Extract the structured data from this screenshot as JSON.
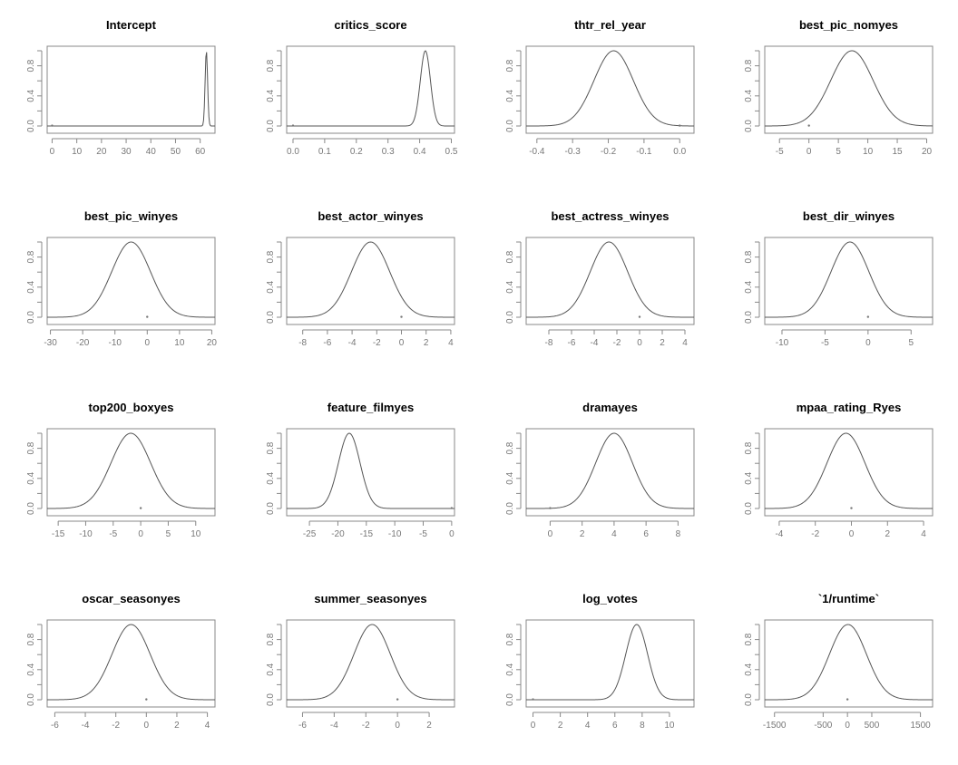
{
  "chart_data": [
    {
      "type": "line",
      "title": "Intercept",
      "xlim": [
        -2,
        66
      ],
      "ylim": [
        0,
        1
      ],
      "xticks": [
        0,
        10,
        20,
        30,
        40,
        50,
        60
      ],
      "yticks": [
        "0.0",
        "0.4",
        "0.8"
      ],
      "peak_x": 62.5,
      "sd": 0.5,
      "point0": {
        "x": 0,
        "y": 0.005
      }
    },
    {
      "type": "line",
      "title": "critics_score",
      "xlim": [
        -0.02,
        0.51
      ],
      "ylim": [
        0,
        1
      ],
      "xticks": [
        "0.0",
        "0.1",
        "0.2",
        "0.3",
        "0.4",
        "0.5"
      ],
      "yticks": [
        "0.0",
        "0.4",
        "0.8"
      ],
      "peak_x": 0.418,
      "sd": 0.016,
      "point0": {
        "x": 0,
        "y": 0.005
      }
    },
    {
      "type": "line",
      "title": "thtr_rel_year",
      "xlim": [
        -0.43,
        0.04
      ],
      "ylim": [
        0,
        1
      ],
      "xticks": [
        "-0.4",
        "-0.3",
        "-0.2",
        "-0.1",
        "0.0"
      ],
      "yticks": [
        "0.0",
        "0.4",
        "0.8"
      ],
      "peak_x": -0.185,
      "sd": 0.055,
      "point0": {
        "x": 0,
        "y": 0.005
      }
    },
    {
      "type": "line",
      "title": "best_pic_nomyes",
      "xlim": [
        -7.5,
        21
      ],
      "ylim": [
        0,
        1
      ],
      "xticks": [
        -5,
        0,
        5,
        10,
        15,
        20
      ],
      "yticks": [
        "0.0",
        "0.4",
        "0.8"
      ],
      "peak_x": 7.3,
      "sd": 3.6,
      "point0": {
        "x": 0,
        "y": 0.005
      }
    },
    {
      "type": "line",
      "title": "best_pic_winyes",
      "xlim": [
        -31,
        21
      ],
      "ylim": [
        0,
        1
      ],
      "xticks": [
        -30,
        -20,
        -10,
        0,
        10,
        20
      ],
      "yticks": [
        "0.0",
        "0.4",
        "0.8"
      ],
      "peak_x": -5,
      "sd": 6,
      "point0": {
        "x": 0,
        "y": 0.005
      }
    },
    {
      "type": "line",
      "title": "best_actor_winyes",
      "xlim": [
        -9.3,
        4.3
      ],
      "ylim": [
        0,
        1
      ],
      "xticks": [
        -8,
        -6,
        -4,
        -2,
        0,
        2,
        4
      ],
      "yticks": [
        "0.0",
        "0.4",
        "0.8"
      ],
      "peak_x": -2.5,
      "sd": 1.55,
      "point0": {
        "x": 0,
        "y": 0.005
      }
    },
    {
      "type": "line",
      "title": "best_actress_winyes",
      "xlim": [
        -10,
        4.8
      ],
      "ylim": [
        0,
        1
      ],
      "xticks": [
        -8,
        -6,
        -4,
        -2,
        0,
        2,
        4
      ],
      "yticks": [
        "0.0",
        "0.4",
        "0.8"
      ],
      "peak_x": -2.7,
      "sd": 1.65,
      "point0": {
        "x": 0,
        "y": 0.005
      }
    },
    {
      "type": "line",
      "title": "best_dir_winyes",
      "xlim": [
        -12,
        7.5
      ],
      "ylim": [
        0,
        1
      ],
      "xticks": [
        -10,
        -5,
        0,
        5
      ],
      "yticks": [
        "0.0",
        "0.4",
        "0.8"
      ],
      "peak_x": -2.1,
      "sd": 2.2,
      "point0": {
        "x": 0,
        "y": 0.005
      }
    },
    {
      "type": "line",
      "title": "top200_boxyes",
      "xlim": [
        -17,
        13.5
      ],
      "ylim": [
        0,
        1
      ],
      "xticks": [
        -15,
        -10,
        -5,
        0,
        5,
        10
      ],
      "yticks": [
        "0.0",
        "0.4",
        "0.8"
      ],
      "peak_x": -1.8,
      "sd": 3.6,
      "point0": {
        "x": 0,
        "y": 0.005
      }
    },
    {
      "type": "line",
      "title": "feature_filmyes",
      "xlim": [
        -29,
        0.5
      ],
      "ylim": [
        0,
        1
      ],
      "xticks": [
        -25,
        -20,
        -15,
        -10,
        -5,
        0
      ],
      "yticks": [
        "0.0",
        "0.4",
        "0.8"
      ],
      "peak_x": -18,
      "sd": 1.9,
      "point0": {
        "x": 0,
        "y": 0.005
      }
    },
    {
      "type": "line",
      "title": "dramayes",
      "xlim": [
        -1.5,
        9
      ],
      "ylim": [
        0,
        1
      ],
      "xticks": [
        0,
        2,
        4,
        6,
        8
      ],
      "yticks": [
        "0.0",
        "0.4",
        "0.8"
      ],
      "peak_x": 4,
      "sd": 1.15,
      "point0": {
        "x": 0,
        "y": 0.005
      }
    },
    {
      "type": "line",
      "title": "mpaa_rating_Ryes",
      "xlim": [
        -4.8,
        4.5
      ],
      "ylim": [
        0,
        1
      ],
      "xticks": [
        -4,
        -2,
        0,
        2,
        4
      ],
      "yticks": [
        "0.0",
        "0.4",
        "0.8"
      ],
      "peak_x": -0.3,
      "sd": 1.05,
      "point0": {
        "x": 0,
        "y": 0.005
      }
    },
    {
      "type": "line",
      "title": "oscar_seasonyes",
      "xlim": [
        -6.5,
        4.5
      ],
      "ylim": [
        0,
        1
      ],
      "xticks": [
        -6,
        -4,
        -2,
        0,
        2,
        4
      ],
      "yticks": [
        "0.0",
        "0.4",
        "0.8"
      ],
      "peak_x": -1,
      "sd": 1.25,
      "point0": {
        "x": 0,
        "y": 0.005
      }
    },
    {
      "type": "line",
      "title": "summer_seasonyes",
      "xlim": [
        -7,
        3.6
      ],
      "ylim": [
        0,
        1
      ],
      "xticks": [
        -6,
        -4,
        -2,
        0,
        2
      ],
      "yticks": [
        "0.0",
        "0.4",
        "0.8"
      ],
      "peak_x": -1.6,
      "sd": 1.15,
      "point0": {
        "x": 0,
        "y": 0.005
      }
    },
    {
      "type": "line",
      "title": "log_votes",
      "xlim": [
        -0.5,
        11.8
      ],
      "ylim": [
        0,
        1
      ],
      "xticks": [
        0,
        2,
        4,
        6,
        8,
        10
      ],
      "yticks": [
        "0.0",
        "0.4",
        "0.8"
      ],
      "peak_x": 7.6,
      "sd": 0.8,
      "point0": {
        "x": 0,
        "y": 0.005
      }
    },
    {
      "type": "line",
      "title": "`1/runtime`",
      "xlim": [
        -1700,
        1750
      ],
      "ylim": [
        0,
        1
      ],
      "xticks": [
        -1500,
        -500,
        0,
        500,
        1500
      ],
      "yticks": [
        "0.0",
        "0.4",
        "0.8"
      ],
      "peak_x": 10,
      "sd": 380,
      "point0": {
        "x": 0,
        "y": 0.005
      }
    }
  ],
  "colors": {
    "curve": "#555555",
    "axis": "#888888",
    "tick_text": "#777777",
    "title": "#000000"
  }
}
